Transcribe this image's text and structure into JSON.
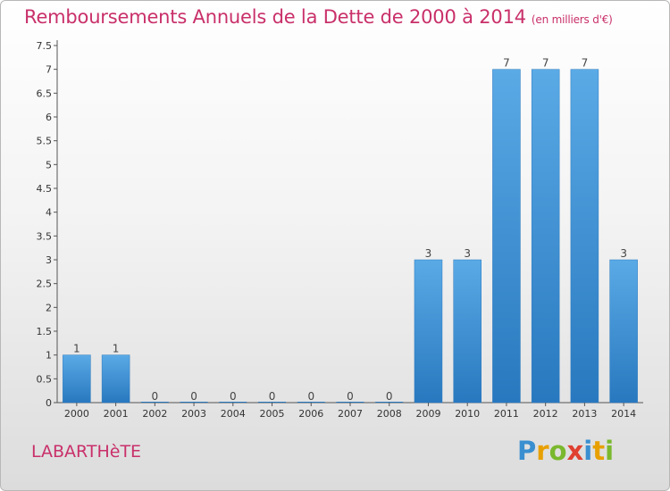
{
  "title": "Remboursements Annuels de la Dette de 2000 à 2014",
  "unit": "(en milliers d'€)",
  "commune": "LABARTHèTE",
  "logo": {
    "text": "Proxiti",
    "letters": [
      {
        "ch": "P",
        "color": "#3a8fd0"
      },
      {
        "ch": "r",
        "color": "#e8a000"
      },
      {
        "ch": "o",
        "color": "#7ab82e"
      },
      {
        "ch": "x",
        "color": "#e04030"
      },
      {
        "ch": "i",
        "color": "#3a8fd0"
      },
      {
        "ch": "t",
        "color": "#e8a000"
      },
      {
        "ch": "i",
        "color": "#7ab82e"
      }
    ]
  },
  "colors": {
    "bar_top": "#5aaae6",
    "bar_bottom": "#2878bf",
    "title": "#c9306a"
  },
  "chart_data": {
    "type": "bar",
    "title": "Remboursements Annuels de la Dette de 2000 à 2014",
    "categories": [
      "2000",
      "2001",
      "2002",
      "2003",
      "2004",
      "2005",
      "2006",
      "2007",
      "2008",
      "2009",
      "2010",
      "2011",
      "2012",
      "2013",
      "2014"
    ],
    "values": [
      1,
      1,
      0,
      0,
      0,
      0,
      0,
      0,
      0,
      3,
      3,
      7,
      7,
      7,
      3
    ],
    "data_labels": [
      "1",
      "1",
      "0",
      "0",
      "0",
      "0",
      "0",
      "0",
      "0",
      "3",
      "3",
      "7",
      "7",
      "7",
      "3"
    ],
    "yticks": [
      "0",
      "0.5",
      "1",
      "1.5",
      "2",
      "2.5",
      "3",
      "3.5",
      "4",
      "4.5",
      "5",
      "5.5",
      "6",
      "6.5",
      "7",
      "7.5"
    ],
    "ylim": [
      0,
      7.5
    ],
    "grid": false
  }
}
